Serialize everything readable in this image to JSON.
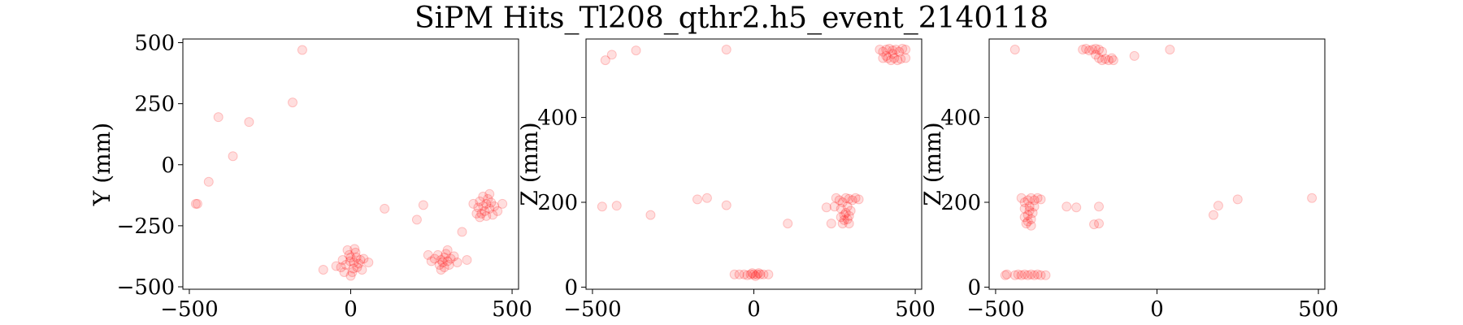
{
  "title": "SiPM Hits_Tl208_qthr2.h5_event_2140118",
  "marker_color": "#ff0000",
  "chart_data": [
    {
      "type": "scatter",
      "xlabel": "",
      "ylabel": "Y (mm)",
      "xlim": [
        -520,
        520
      ],
      "ylim": [
        -510,
        515
      ],
      "xticks": [
        -500,
        0,
        500
      ],
      "yticks": [
        -500,
        -250,
        0,
        250,
        500
      ],
      "points": [
        [
          -150,
          470
        ],
        [
          -180,
          255
        ],
        [
          -410,
          195
        ],
        [
          -315,
          175
        ],
        [
          -365,
          35
        ],
        [
          -440,
          -70
        ],
        [
          -475,
          -160
        ],
        [
          -480,
          -160
        ],
        [
          105,
          -180
        ],
        [
          225,
          -165
        ],
        [
          205,
          -225
        ],
        [
          345,
          -275
        ],
        [
          -85,
          -430
        ],
        [
          -45,
          -415
        ],
        [
          -25,
          -390
        ],
        [
          -15,
          -410
        ],
        [
          0,
          -380
        ],
        [
          10,
          -400
        ],
        [
          20,
          -420
        ],
        [
          30,
          -390
        ],
        [
          5,
          -440
        ],
        [
          -10,
          -350
        ],
        [
          15,
          -360
        ],
        [
          -5,
          -370
        ],
        [
          25,
          -405
        ],
        [
          40,
          -385
        ],
        [
          -30,
          -420
        ],
        [
          0,
          -455
        ],
        [
          35,
          -430
        ],
        [
          12,
          -345
        ],
        [
          -20,
          -440
        ],
        [
          8,
          -425
        ],
        [
          55,
          -400
        ],
        [
          -2,
          -395
        ],
        [
          18,
          -380
        ],
        [
          270,
          -370
        ],
        [
          280,
          -390
        ],
        [
          290,
          -380
        ],
        [
          300,
          -395
        ],
        [
          275,
          -410
        ],
        [
          295,
          -365
        ],
        [
          310,
          -385
        ],
        [
          285,
          -400
        ],
        [
          260,
          -385
        ],
        [
          305,
          -410
        ],
        [
          290,
          -420
        ],
        [
          320,
          -375
        ],
        [
          250,
          -395
        ],
        [
          330,
          -400
        ],
        [
          300,
          -350
        ],
        [
          280,
          -430
        ],
        [
          360,
          -390
        ],
        [
          240,
          -370
        ],
        [
          400,
          -150
        ],
        [
          410,
          -170
        ],
        [
          420,
          -160
        ],
        [
          430,
          -180
        ],
        [
          405,
          -200
        ],
        [
          425,
          -140
        ],
        [
          415,
          -190
        ],
        [
          435,
          -155
        ],
        [
          395,
          -175
        ],
        [
          445,
          -170
        ],
        [
          420,
          -210
        ],
        [
          410,
          -130
        ],
        [
          380,
          -160
        ],
        [
          455,
          -190
        ],
        [
          430,
          -120
        ],
        [
          390,
          -200
        ],
        [
          470,
          -160
        ],
        [
          400,
          -215
        ],
        [
          440,
          -205
        ]
      ]
    },
    {
      "type": "scatter",
      "xlabel": "",
      "ylabel": "Z (mm)",
      "xlim": [
        -520,
        520
      ],
      "ylim": [
        -5,
        585
      ],
      "xticks": [
        -500,
        0,
        500
      ],
      "yticks": [
        0,
        200,
        400
      ],
      "points": [
        [
          -460,
          535
        ],
        [
          -440,
          548
        ],
        [
          -365,
          558
        ],
        [
          -85,
          560
        ],
        [
          -470,
          190
        ],
        [
          -425,
          192
        ],
        [
          -320,
          170
        ],
        [
          -175,
          207
        ],
        [
          -145,
          210
        ],
        [
          -85,
          193
        ],
        [
          105,
          150
        ],
        [
          225,
          188
        ],
        [
          -60,
          30
        ],
        [
          -45,
          30
        ],
        [
          -30,
          30
        ],
        [
          -20,
          28
        ],
        [
          -10,
          30
        ],
        [
          0,
          30
        ],
        [
          10,
          30
        ],
        [
          20,
          30
        ],
        [
          30,
          30
        ],
        [
          45,
          30
        ],
        [
          5,
          26
        ],
        [
          15,
          33
        ],
        [
          -5,
          33
        ],
        [
          240,
          150
        ],
        [
          255,
          210
        ],
        [
          265,
          205
        ],
        [
          275,
          200
        ],
        [
          285,
          210
        ],
        [
          295,
          208
        ],
        [
          305,
          205
        ],
        [
          315,
          210
        ],
        [
          325,
          207
        ],
        [
          270,
          185
        ],
        [
          280,
          170
        ],
        [
          290,
          160
        ],
        [
          275,
          150
        ],
        [
          290,
          190
        ],
        [
          285,
          175
        ],
        [
          295,
          150
        ],
        [
          270,
          165
        ],
        [
          300,
          180
        ],
        [
          280,
          158
        ],
        [
          295,
          168
        ],
        [
          250,
          190
        ],
        [
          390,
          560
        ],
        [
          400,
          555
        ],
        [
          410,
          560
        ],
        [
          420,
          562
        ],
        [
          430,
          558
        ],
        [
          440,
          560
        ],
        [
          450,
          555
        ],
        [
          460,
          562
        ],
        [
          415,
          540
        ],
        [
          425,
          535
        ],
        [
          435,
          540
        ],
        [
          445,
          535
        ],
        [
          400,
          540
        ],
        [
          455,
          538
        ],
        [
          470,
          560
        ],
        [
          410,
          545
        ],
        [
          430,
          550
        ],
        [
          470,
          540
        ]
      ]
    },
    {
      "type": "scatter",
      "xlabel": "",
      "ylabel": "Z (mm)",
      "xlim": [
        -520,
        520
      ],
      "ylim": [
        -5,
        585
      ],
      "xticks": [
        -500,
        0,
        500
      ],
      "yticks": [
        0,
        200,
        400
      ],
      "points": [
        [
          -440,
          560
        ],
        [
          -70,
          545
        ],
        [
          40,
          560
        ],
        [
          -280,
          190
        ],
        [
          -250,
          188
        ],
        [
          -180,
          190
        ],
        [
          -180,
          150
        ],
        [
          -195,
          148
        ],
        [
          175,
          170
        ],
        [
          190,
          192
        ],
        [
          250,
          207
        ],
        [
          480,
          210
        ],
        [
          -470,
          28
        ],
        [
          -465,
          30
        ],
        [
          -440,
          28
        ],
        [
          -430,
          30
        ],
        [
          -420,
          28
        ],
        [
          -410,
          30
        ],
        [
          -400,
          28
        ],
        [
          -390,
          30
        ],
        [
          -380,
          28
        ],
        [
          -370,
          30
        ],
        [
          -360,
          28
        ],
        [
          -345,
          28
        ],
        [
          -420,
          210
        ],
        [
          -410,
          200
        ],
        [
          -400,
          205
        ],
        [
          -390,
          210
        ],
        [
          -380,
          205
        ],
        [
          -370,
          210
        ],
        [
          -360,
          207
        ],
        [
          -410,
          185
        ],
        [
          -400,
          170
        ],
        [
          -390,
          160
        ],
        [
          -405,
          150
        ],
        [
          -395,
          190
        ],
        [
          -385,
          175
        ],
        [
          -400,
          155
        ],
        [
          -390,
          145
        ],
        [
          -380,
          190
        ],
        [
          -410,
          165
        ],
        [
          -395,
          180
        ],
        [
          -230,
          560
        ],
        [
          -220,
          562
        ],
        [
          -210,
          558
        ],
        [
          -200,
          560
        ],
        [
          -190,
          562
        ],
        [
          -180,
          560
        ],
        [
          -170,
          555
        ],
        [
          -180,
          540
        ],
        [
          -170,
          535
        ],
        [
          -160,
          538
        ],
        [
          -150,
          535
        ],
        [
          -140,
          540
        ],
        [
          -135,
          535
        ],
        [
          -190,
          548
        ]
      ]
    }
  ]
}
